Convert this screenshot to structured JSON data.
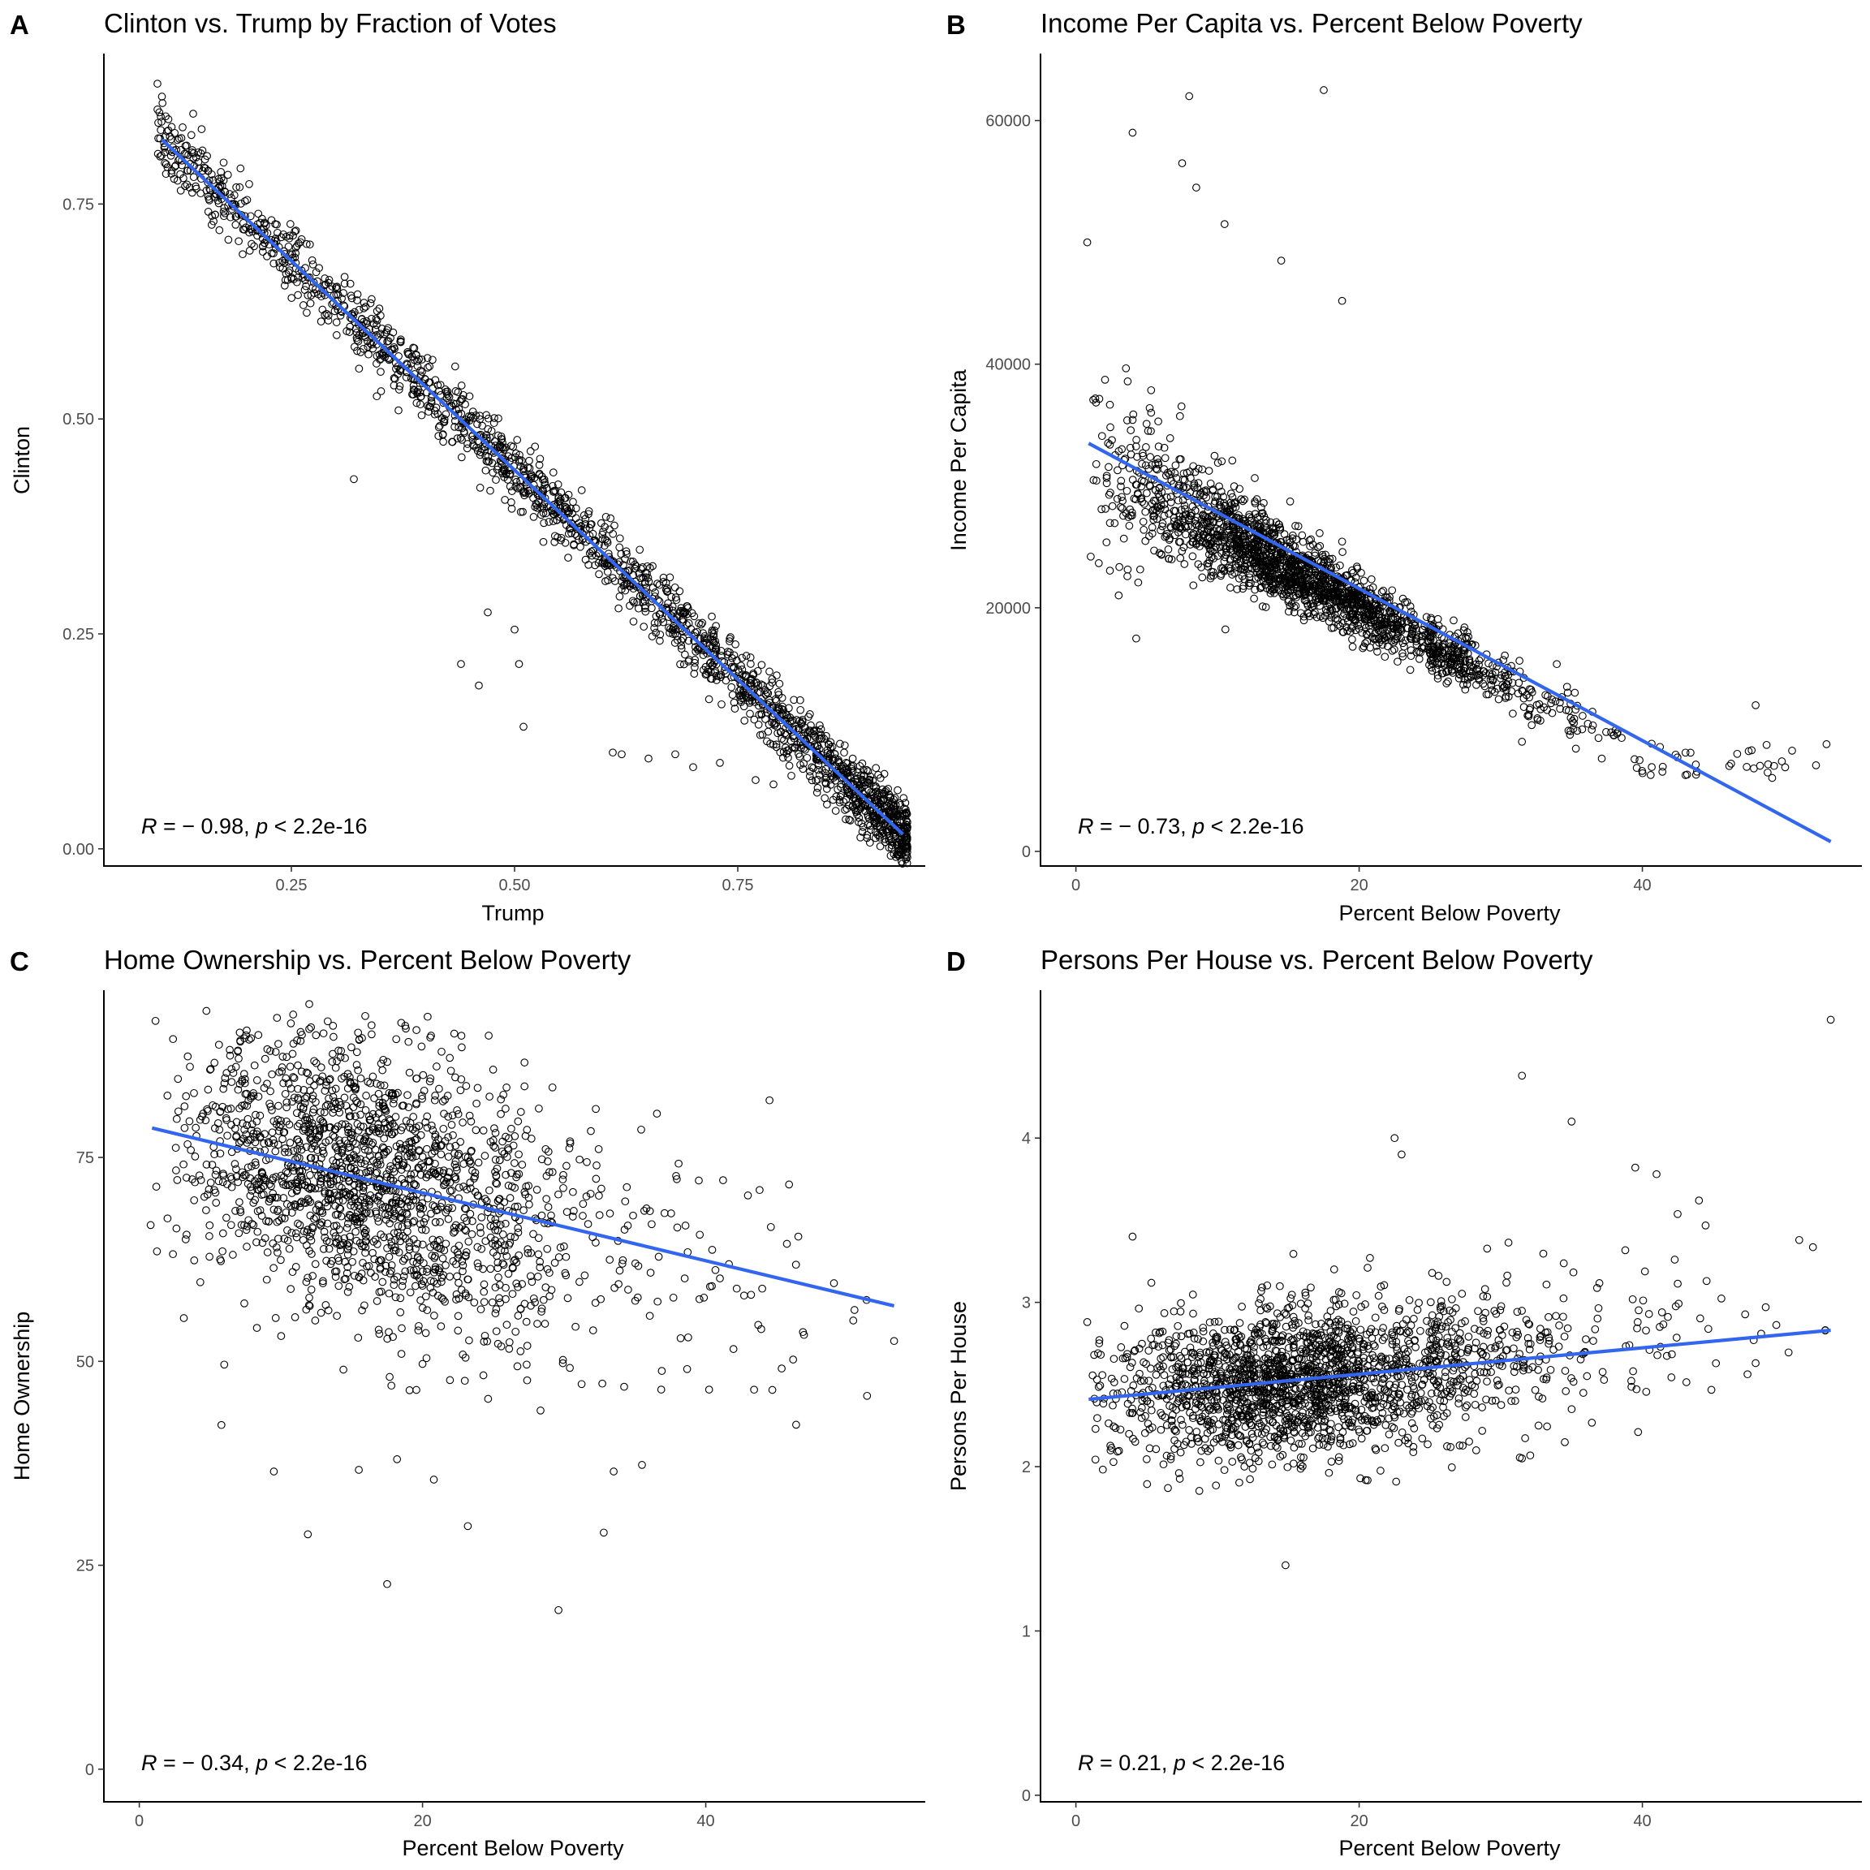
{
  "chart_data": [
    {
      "panel": "A",
      "type": "scatter",
      "title": "Clinton vs. Trump by Fraction of Votes",
      "xlabel": "Trump",
      "ylabel": "Clinton",
      "xlim": [
        0.04,
        0.96
      ],
      "ylim": [
        -0.02,
        0.925
      ],
      "xticks": [
        0.25,
        0.5,
        0.75
      ],
      "xtick_labels": [
        "0.25",
        "0.50",
        "0.75"
      ],
      "yticks": [
        0.0,
        0.25,
        0.5,
        0.75
      ],
      "ytick_labels": [
        "0.00",
        "0.25",
        "0.50",
        "0.75"
      ],
      "annotation": {
        "r_symbol": "R",
        "r_text": " = − 0.98, ",
        "p_symbol": "p",
        "p_text": " < 2.2e-16"
      },
      "fit_line": {
        "x": [
          0.105,
          0.935
        ],
        "y": [
          0.825,
          0.017
        ]
      },
      "series": [
        {
          "description": "counties",
          "marker": "open-circle",
          "n_points": 1900,
          "dist": {
            "kind": "fit",
            "xmin": 0.1,
            "xmax": 0.94,
            "xshape": "skew-high",
            "sd": 0.02,
            "outliers": [
              [
                0.32,
                0.43
              ],
              [
                0.44,
                0.215
              ],
              [
                0.46,
                0.19
              ],
              [
                0.47,
                0.275
              ],
              [
                0.5,
                0.255
              ],
              [
                0.505,
                0.215
              ],
              [
                0.51,
                0.142
              ],
              [
                0.61,
                0.112
              ],
              [
                0.62,
                0.11
              ],
              [
                0.65,
                0.105
              ],
              [
                0.68,
                0.11
              ],
              [
                0.7,
                0.095
              ],
              [
                0.73,
                0.1
              ],
              [
                0.77,
                0.08
              ],
              [
                0.79,
                0.075
              ],
              [
                0.81,
                0.085
              ],
              [
                0.37,
                0.51
              ],
              [
                0.1,
                0.89
              ],
              [
                0.1,
                0.86
              ],
              [
                0.105,
                0.875
              ],
              [
                0.14,
                0.855
              ]
            ]
          }
        }
      ],
      "color_line": "#3366ee"
    },
    {
      "panel": "B",
      "type": "scatter",
      "title": "Income Per Capita vs. Percent Below Poverty",
      "xlabel": "Percent Below Poverty",
      "ylabel": "Income Per Capita",
      "xlim": [
        -2.5,
        55.5
      ],
      "ylim": [
        -1200,
        65500
      ],
      "xticks": [
        0,
        20,
        40
      ],
      "xtick_labels": [
        "0",
        "20",
        "40"
      ],
      "yticks": [
        0,
        20000,
        40000,
        60000
      ],
      "ytick_labels": [
        "0",
        "20000",
        "40000",
        "60000"
      ],
      "annotation": {
        "r_symbol": "R",
        "r_text": " = − 0.73, ",
        "p_symbol": "p",
        "p_text": " < 2.2e-16"
      },
      "fit_line": {
        "x": [
          0.9,
          53.3
        ],
        "y": [
          33500,
          800
        ]
      },
      "series": [
        {
          "description": "counties",
          "marker": "open-circle",
          "n_points": 2000,
          "dist": {
            "kind": "income",
            "xmean": 15,
            "xsd": 6.5,
            "xmin": 1,
            "xmax": 53,
            "outliers": [
              [
                0.8,
                50000
              ],
              [
                4,
                59000
              ],
              [
                7.5,
                56500
              ],
              [
                8,
                62000
              ],
              [
                8.5,
                54500
              ],
              [
                17.5,
                62500
              ],
              [
                10.5,
                51500
              ],
              [
                14.5,
                48500
              ],
              [
                18.8,
                45200
              ],
              [
                53,
                8800
              ],
              [
                48,
                12000
              ],
              [
                31.5,
                9000
              ]
            ]
          }
        }
      ],
      "color_line": "#3366ee"
    },
    {
      "panel": "C",
      "type": "scatter",
      "title": "Home Ownership vs. Percent Below Poverty",
      "xlabel": "Percent Below Poverty",
      "ylabel": "Home Ownership",
      "xlim": [
        -2.5,
        55.5
      ],
      "ylim": [
        -4,
        95.5
      ],
      "xticks": [
        0,
        20,
        40
      ],
      "xtick_labels": [
        "0",
        "20",
        "40"
      ],
      "yticks": [
        0,
        25,
        50,
        75
      ],
      "ytick_labels": [
        "0",
        "25",
        "50",
        "75"
      ],
      "annotation": {
        "r_symbol": "R",
        "r_text": " = − 0.34, ",
        "p_symbol": "p",
        "p_text": " < 2.2e-16"
      },
      "fit_line": {
        "x": [
          0.9,
          53.3
        ],
        "y": [
          78.6,
          56.8
        ]
      },
      "series": [
        {
          "description": "counties",
          "marker": "open-circle",
          "n_points": 1800,
          "dist": {
            "kind": "ownership",
            "xmean": 15,
            "xsd": 6.5,
            "xmin": 1,
            "xmax": 53,
            "outliers": [
              [
                0.8,
                66.7
              ],
              [
                5.8,
                42.2
              ],
              [
                6,
                49.6
              ],
              [
                9.5,
                36.5
              ],
              [
                11.9,
                28.8
              ],
              [
                15.5,
                36.7
              ],
              [
                17.5,
                22.7
              ],
              [
                18.2,
                38
              ],
              [
                20.8,
                35.5
              ],
              [
                23.2,
                29.8
              ],
              [
                29.6,
                19.5
              ],
              [
                32.8,
                29
              ],
              [
                33.5,
                36.5
              ],
              [
                35.5,
                37.3
              ],
              [
                44.5,
                82
              ],
              [
                53.3,
                52.5
              ],
              [
                44.7,
                46.5
              ],
              [
                43.8,
                71
              ],
              [
                50.5,
                56.3
              ],
              [
                12,
                93.8
              ],
              [
                18.5,
                91.5
              ]
            ]
          }
        }
      ],
      "color_line": "#3366ee"
    },
    {
      "panel": "D",
      "type": "scatter",
      "title": "Persons Per House vs. Percent Below Poverty",
      "xlabel": "Percent Below Poverty",
      "ylabel": "Persons Per House",
      "xlim": [
        -2.5,
        55.5
      ],
      "ylim": [
        -0.04,
        4.9
      ],
      "xticks": [
        0,
        20,
        40
      ],
      "xtick_labels": [
        "0",
        "20",
        "40"
      ],
      "yticks": [
        0,
        1,
        2,
        3,
        4
      ],
      "ytick_labels": [
        "0",
        "1",
        "2",
        "3",
        "4"
      ],
      "annotation": {
        "r_symbol": "R",
        "r_text": " = 0.21, ",
        "p_symbol": "p",
        "p_text": " < 2.2e-16"
      },
      "fit_line": {
        "x": [
          0.9,
          53.3
        ],
        "y": [
          2.41,
          2.83
        ]
      },
      "series": [
        {
          "description": "counties",
          "marker": "open-circle",
          "n_points": 2000,
          "dist": {
            "kind": "persons",
            "xmean": 15,
            "xsd": 6.5,
            "xmin": 1,
            "xmax": 53,
            "outliers": [
              [
                53.3,
                4.72
              ],
              [
                31.5,
                4.38
              ],
              [
                35,
                4.1
              ],
              [
                22.5,
                4
              ],
              [
                23,
                3.9
              ],
              [
                41,
                3.78
              ],
              [
                39.5,
                3.82
              ],
              [
                44,
                3.62
              ],
              [
                14.8,
                1.4
              ],
              [
                6.5,
                1.87
              ],
              [
                31.5,
                2.05
              ],
              [
                0.8,
                2.88
              ],
              [
                4,
                3.4
              ],
              [
                48,
                2.63
              ]
            ]
          }
        }
      ],
      "color_line": "#3366ee"
    }
  ]
}
